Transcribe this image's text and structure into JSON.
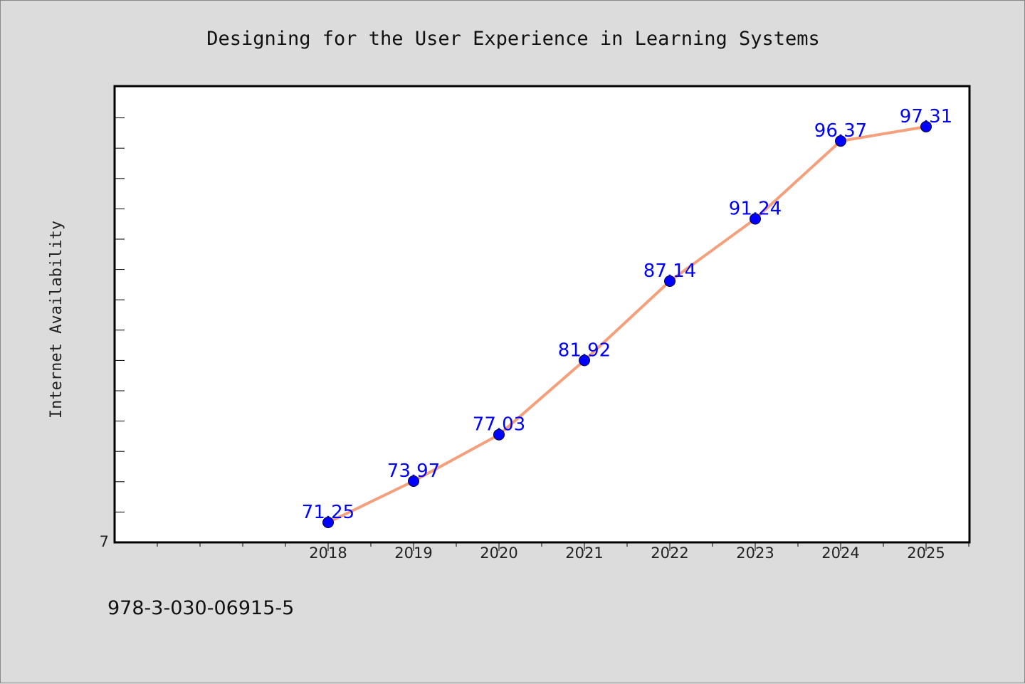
{
  "chart_data": {
    "type": "line",
    "title": "Designing for the User Experience in Learning Systems",
    "xlabel": "",
    "ylabel": "Internet Availability",
    "categories": [
      "2018",
      "2019",
      "2020",
      "2021",
      "2022",
      "2023",
      "2024",
      "2025"
    ],
    "series": [
      {
        "values": [
          71.25,
          73.97,
          77.03,
          81.92,
          87.14,
          91.24,
          96.37,
          97.31
        ]
      }
    ],
    "point_labels": [
      "71.25",
      "73.97",
      "77.03",
      "81.92",
      "87.14",
      "91.24",
      "96.37",
      "97.31"
    ],
    "y_tick_label": "7",
    "ylim": [
      70,
      100
    ],
    "grid": false,
    "legend": "none",
    "colors": {
      "line": "#f4a07c",
      "marker": "#0000ff",
      "point_label": "#0000ff",
      "background": "#dcdcdc",
      "plot_background": "#ffffff"
    }
  },
  "footer": {
    "isbn": "978-3-030-06915-5"
  }
}
